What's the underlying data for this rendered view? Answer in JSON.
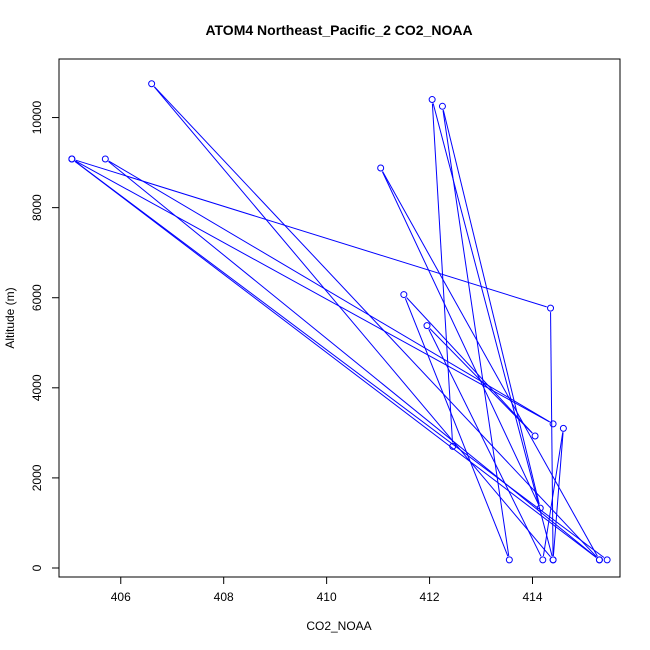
{
  "chart_data": {
    "type": "scatter",
    "title": "ATOM4 Northeast_Pacific_2 CO2_NOAA",
    "xlabel": "CO2_NOAA",
    "ylabel": "Altitude (m)",
    "xlim": [
      404.8,
      415.7
    ],
    "ylim": [
      -200,
      11300
    ],
    "xticks": [
      406,
      408,
      410,
      412,
      414
    ],
    "yticks": [
      0,
      2000,
      4000,
      6000,
      8000,
      10000
    ],
    "grid": false,
    "line_color": "#0000ff",
    "point_style": "open circle connected by lines",
    "series": [
      {
        "points": [
          {
            "x": 415.45,
            "y": 180
          },
          {
            "x": 405.05,
            "y": 9080
          },
          {
            "x": 414.4,
            "y": 3200
          },
          {
            "x": 405.7,
            "y": 9080
          },
          {
            "x": 415.3,
            "y": 180
          },
          {
            "x": 406.6,
            "y": 10750
          },
          {
            "x": 414.4,
            "y": 180
          },
          {
            "x": 414.6,
            "y": 3100
          },
          {
            "x": 414.2,
            "y": 180
          },
          {
            "x": 411.95,
            "y": 5380
          },
          {
            "x": 414.05,
            "y": 2930
          },
          {
            "x": 411.5,
            "y": 6070
          },
          {
            "x": 413.55,
            "y": 180
          },
          {
            "x": 412.25,
            "y": 10250
          },
          {
            "x": 414.15,
            "y": 1330
          },
          {
            "x": 411.05,
            "y": 8880
          },
          {
            "x": 415.3,
            "y": 180
          },
          {
            "x": 405.05,
            "y": 9080
          },
          {
            "x": 414.35,
            "y": 5770
          },
          {
            "x": 414.4,
            "y": 180
          },
          {
            "x": 412.05,
            "y": 10400
          },
          {
            "x": 412.45,
            "y": 2700
          }
        ]
      }
    ]
  }
}
